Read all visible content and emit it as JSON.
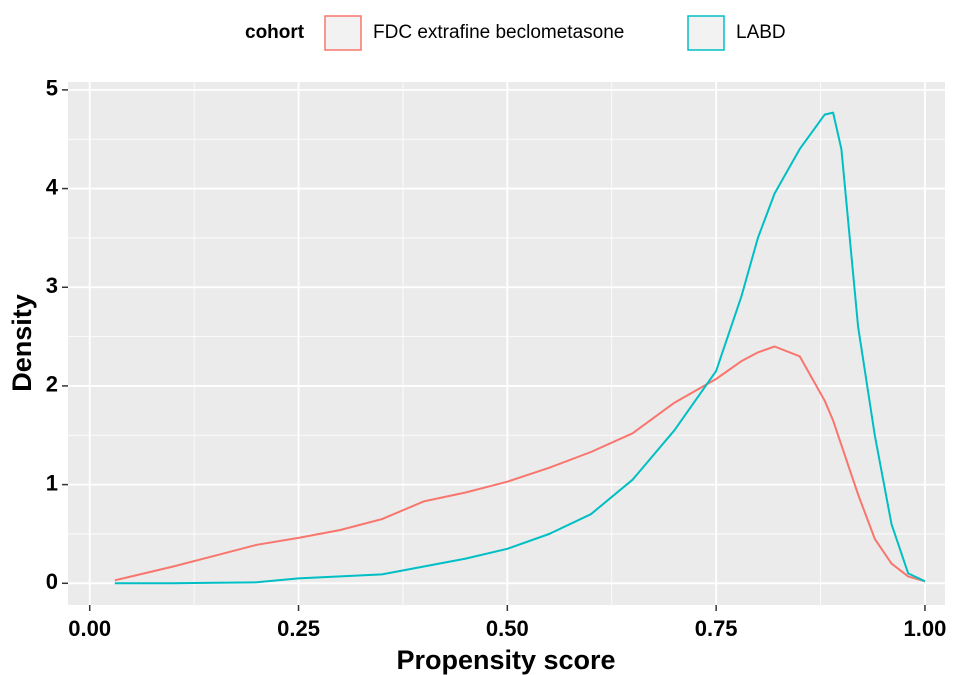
{
  "chart_data": {
    "type": "line",
    "xlabel": "Propensity score",
    "ylabel": "Density",
    "legend_title": "cohort",
    "legend": "top",
    "x": [
      0.03,
      0.1,
      0.15,
      0.2,
      0.25,
      0.3,
      0.35,
      0.4,
      0.45,
      0.5,
      0.55,
      0.6,
      0.65,
      0.7,
      0.75,
      0.78,
      0.8,
      0.82,
      0.85,
      0.88,
      0.89,
      0.9,
      0.92,
      0.94,
      0.96,
      0.98,
      1.0
    ],
    "series": [
      {
        "name": "FDC extrafine beclometasone",
        "color": "#f8766d",
        "values": [
          0.03,
          0.17,
          0.28,
          0.39,
          0.46,
          0.54,
          0.65,
          0.83,
          0.92,
          1.03,
          1.17,
          1.33,
          1.52,
          1.83,
          2.07,
          2.25,
          2.34,
          2.4,
          2.3,
          1.85,
          1.65,
          1.4,
          0.9,
          0.45,
          0.2,
          0.07,
          0.02
        ]
      },
      {
        "name": "LABD",
        "color": "#00bfc4",
        "values": [
          0,
          0,
          0.005,
          0.01,
          0.05,
          0.07,
          0.09,
          0.17,
          0.25,
          0.35,
          0.5,
          0.7,
          1.05,
          1.55,
          2.15,
          2.9,
          3.5,
          3.95,
          4.4,
          4.75,
          4.77,
          4.4,
          2.6,
          1.5,
          0.6,
          0.1,
          0.02
        ]
      }
    ],
    "xlim": [
      -0.026,
      1.024
    ],
    "xticks": [
      {
        "value": 0,
        "label": "0.00"
      },
      0.25,
      {
        "value": 0.5,
        "label": "0.50"
      },
      0.75,
      {
        "value": 1,
        "label": "1.00"
      }
    ],
    "ylim": [
      -0.22,
      5.08
    ],
    "yticks": [
      0,
      1,
      2,
      3,
      4,
      5
    ],
    "grid": true
  }
}
